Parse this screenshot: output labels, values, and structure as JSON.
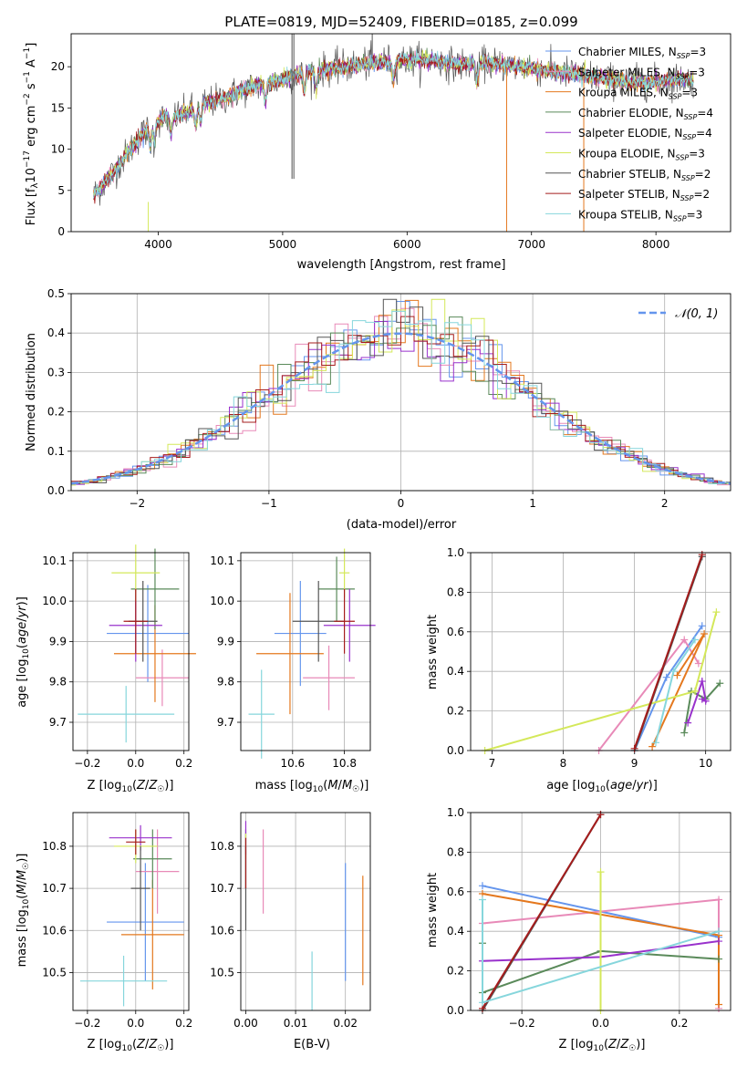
{
  "colors": {
    "chabrier_miles": "#6495ed",
    "salpeter_miles": "#e88ab8",
    "kroupa_miles": "#e4781e",
    "chabrier_elodie": "#5a8a5a",
    "salpeter_elodie": "#9932cc",
    "kroupa_elodie": "#d4e85a",
    "chabrier_stelib": "#555555",
    "salpeter_stelib": "#a51c1c",
    "kroupa_stelib": "#86d6dc",
    "grid": "#b0b0b0"
  },
  "chart_data": [
    {
      "id": "spectrum",
      "type": "line",
      "title": "PLATE=0819, MJD=52409, FIBERID=0185, z=0.099",
      "xlabel": "wavelength [Angstrom, rest frame]",
      "ylabel": "Flux [fλ10⁻¹⁷ erg cm⁻² s⁻¹ A⁻¹]",
      "xlim": [
        3300,
        8600
      ],
      "ylim": [
        0,
        24
      ],
      "xticks": [
        4000,
        5000,
        6000,
        7000,
        8000
      ],
      "yticks": [
        0,
        5,
        10,
        15,
        20
      ],
      "grid": false,
      "legend_position": "right",
      "legend": [
        {
          "label": "Chabrier MILES, N",
          "sub": "SSP",
          "tail": "=3",
          "color_key": "chabrier_miles"
        },
        {
          "label": "Salpeter MILES, N",
          "sub": "SSP",
          "tail": "=3",
          "color_key": "salpeter_miles"
        },
        {
          "label": "Kroupa MILES, N",
          "sub": "SSP",
          "tail": "=3",
          "color_key": "kroupa_miles"
        },
        {
          "label": "Chabrier ELODIE, N",
          "sub": "SSP",
          "tail": "=4",
          "color_key": "chabrier_elodie"
        },
        {
          "label": "Salpeter ELODIE, N",
          "sub": "SSP",
          "tail": "=4",
          "color_key": "salpeter_elodie"
        },
        {
          "label": "Kroupa ELODIE, N",
          "sub": "SSP",
          "tail": "=3",
          "color_key": "kroupa_elodie"
        },
        {
          "label": "Chabrier STELIB, N",
          "sub": "SSP",
          "tail": "=2",
          "color_key": "chabrier_stelib"
        },
        {
          "label": "Salpeter STELIB, N",
          "sub": "SSP",
          "tail": "=2",
          "color_key": "salpeter_stelib"
        },
        {
          "label": "Kroupa STELIB, N",
          "sub": "SSP",
          "tail": "=3",
          "color_key": "kroupa_stelib"
        }
      ],
      "continuum": {
        "x": [
          3480,
          3550,
          3650,
          3750,
          3850,
          3950,
          4050,
          4150,
          4250,
          4350,
          4500,
          4650,
          4800,
          4950,
          5100,
          5250,
          5400,
          5600,
          5800,
          6000,
          6200,
          6400,
          6600,
          6800,
          7000,
          7200,
          7400,
          7600,
          7800,
          8000,
          8200,
          8300
        ],
        "y": [
          4.5,
          5.5,
          7.5,
          9.5,
          11.5,
          13.0,
          13.8,
          14.0,
          14.6,
          15.5,
          16.0,
          17.0,
          17.8,
          18.2,
          19.0,
          19.5,
          19.8,
          20.2,
          20.6,
          20.8,
          20.8,
          20.2,
          20.5,
          20.2,
          19.8,
          19.4,
          19.0,
          18.5,
          18.1,
          18.2,
          18.5,
          18.4
        ]
      },
      "spikes": [
        {
          "x": 3920,
          "y0": 0,
          "y1": 3.6,
          "color_key": "kroupa_elodie"
        },
        {
          "x": 5075,
          "y0": 6.4,
          "y1": 24,
          "color_key": "chabrier_stelib"
        },
        {
          "x": 5090,
          "y0": 24,
          "y1": 6.4,
          "color_key": "chabrier_stelib"
        },
        {
          "x": 5720,
          "y0": 24,
          "y1": 21.0,
          "color_key": "chabrier_stelib"
        },
        {
          "x": 6800,
          "y0": 0,
          "y1": 20.0,
          "color_key": "kroupa_miles"
        },
        {
          "x": 7420,
          "y0": 0,
          "y1": 20.0,
          "color_key": "kroupa_miles"
        }
      ]
    },
    {
      "id": "residuals",
      "type": "line",
      "xlabel": "(data-model)/error",
      "ylabel": "Normed distribution",
      "xlim": [
        -2.5,
        2.5
      ],
      "ylim": [
        0,
        0.5
      ],
      "xticks": [
        -2,
        -1,
        0,
        1,
        2
      ],
      "yticks": [
        0.0,
        0.1,
        0.2,
        0.3,
        0.4,
        0.5
      ],
      "grid": true,
      "legend": [
        {
          "label": "𝒩(0, 1)",
          "color_key": "chabrier_miles",
          "style": "dashed"
        }
      ],
      "bin_width": 0.1,
      "gaussian": {
        "mu": 0,
        "sigma": 1
      }
    },
    {
      "id": "age_vs_Z",
      "type": "errorbar",
      "xlabel": "Z [log₁₀(Z/Z⊙)]",
      "ylabel": "age  [log₁₀(age/yr)]",
      "xlim": [
        -0.26,
        0.22
      ],
      "ylim": [
        9.63,
        10.12
      ],
      "xticks": [
        -0.2,
        0.0,
        0.2
      ],
      "yticks": [
        9.7,
        9.8,
        9.9,
        10.0,
        10.1
      ],
      "grid": true,
      "points": [
        {
          "x": 0.05,
          "y": 9.92,
          "xerr": 0.17,
          "yerr": 0.12,
          "color_key": "chabrier_miles"
        },
        {
          "x": 0.11,
          "y": 9.81,
          "xerr": 0.11,
          "yerr": 0.07,
          "color_key": "salpeter_miles"
        },
        {
          "x": 0.08,
          "y": 9.87,
          "xerr": 0.17,
          "yerr": 0.12,
          "color_key": "kroupa_miles"
        },
        {
          "x": 0.08,
          "y": 10.03,
          "xerr": 0.1,
          "yerr": 0.1,
          "color_key": "chabrier_elodie"
        },
        {
          "x": 0.0,
          "y": 9.94,
          "xerr": 0.11,
          "yerr": 0.09,
          "color_key": "salpeter_elodie"
        },
        {
          "x": 0.0,
          "y": 10.07,
          "xerr": 0.1,
          "yerr": 0.07,
          "color_key": "kroupa_elodie"
        },
        {
          "x": 0.03,
          "y": 9.95,
          "xerr": 0.06,
          "yerr": 0.1,
          "color_key": "chabrier_stelib"
        },
        {
          "x": 0.0,
          "y": 9.95,
          "xerr": 0.05,
          "yerr": 0.08,
          "color_key": "salpeter_stelib"
        },
        {
          "x": -0.04,
          "y": 9.72,
          "xerr": 0.2,
          "yerr": 0.07,
          "color_key": "kroupa_stelib"
        }
      ]
    },
    {
      "id": "age_vs_mass",
      "type": "errorbar",
      "xlabel": "mass [log₁₀(M/M⊙)]",
      "ylabel": "",
      "xlim": [
        10.4,
        10.9
      ],
      "ylim": [
        9.63,
        10.12
      ],
      "xticks": [
        10.6,
        10.8
      ],
      "yticks": [
        9.7,
        9.8,
        9.9,
        10.0,
        10.1
      ],
      "grid": true,
      "points": [
        {
          "x": 10.63,
          "y": 9.92,
          "xerr": 0.1,
          "yerr": 0.13,
          "color_key": "chabrier_miles"
        },
        {
          "x": 10.74,
          "y": 9.81,
          "xerr": 0.1,
          "yerr": 0.08,
          "color_key": "salpeter_miles"
        },
        {
          "x": 10.59,
          "y": 9.87,
          "xerr": 0.13,
          "yerr": 0.15,
          "color_key": "kroupa_miles"
        },
        {
          "x": 10.77,
          "y": 10.03,
          "xerr": 0.07,
          "yerr": 0.08,
          "color_key": "chabrier_elodie"
        },
        {
          "x": 10.82,
          "y": 9.94,
          "xerr": 0.1,
          "yerr": 0.09,
          "color_key": "salpeter_elodie"
        },
        {
          "x": 10.8,
          "y": 10.07,
          "xerr": 0.02,
          "yerr": 0.06,
          "color_key": "kroupa_elodie"
        },
        {
          "x": 10.7,
          "y": 9.95,
          "xerr": 0.1,
          "yerr": 0.1,
          "color_key": "chabrier_stelib"
        },
        {
          "x": 10.8,
          "y": 9.95,
          "xerr": 0.04,
          "yerr": 0.08,
          "color_key": "salpeter_stelib"
        },
        {
          "x": 10.48,
          "y": 9.72,
          "xerr": 0.05,
          "yerr": 0.11,
          "color_key": "kroupa_stelib"
        }
      ]
    },
    {
      "id": "weight_vs_age",
      "type": "line",
      "xlabel": "age  [log₁₀(age/yr)]",
      "ylabel": "mass weight",
      "xlim": [
        6.7,
        10.35
      ],
      "ylim": [
        0,
        1
      ],
      "xticks": [
        7,
        8,
        9,
        10
      ],
      "yticks": [
        0.0,
        0.2,
        0.4,
        0.6,
        0.8,
        1.0
      ],
      "grid": true,
      "series": [
        {
          "color_key": "chabrier_miles",
          "x": [
            9.95,
            9.45,
            9.0
          ],
          "y": [
            0.63,
            0.37,
            0.0
          ]
        },
        {
          "color_key": "salpeter_miles",
          "x": [
            8.5,
            9.7,
            9.9
          ],
          "y": [
            0.0,
            0.56,
            0.44
          ]
        },
        {
          "color_key": "kroupa_miles",
          "x": [
            9.25,
            9.98,
            9.6
          ],
          "y": [
            0.02,
            0.59,
            0.38
          ]
        },
        {
          "color_key": "chabrier_elodie",
          "x": [
            9.7,
            9.8,
            10.0,
            10.2
          ],
          "y": [
            0.09,
            0.3,
            0.26,
            0.34
          ]
        },
        {
          "color_key": "salpeter_elodie",
          "x": [
            9.75,
            9.95,
            10.0,
            9.95
          ],
          "y": [
            0.14,
            0.35,
            0.25,
            0.26
          ]
        },
        {
          "color_key": "kroupa_elodie",
          "x": [
            6.9,
            9.85,
            10.15
          ],
          "y": [
            0.0,
            0.3,
            0.7
          ]
        },
        {
          "color_key": "chabrier_stelib",
          "x": [
            9.0,
            9.95
          ],
          "y": [
            0.0,
            0.98
          ]
        },
        {
          "color_key": "salpeter_stelib",
          "x": [
            9.0,
            9.95
          ],
          "y": [
            0.01,
            0.99
          ]
        },
        {
          "color_key": "kroupa_stelib",
          "x": [
            9.3,
            9.55,
            9.85
          ],
          "y": [
            0.04,
            0.4,
            0.56
          ]
        }
      ]
    },
    {
      "id": "mass_vs_Z",
      "type": "errorbar",
      "xlabel": "Z [log₁₀(Z/Z⊙)]",
      "ylabel": "mass [log₁₀(M/M⊙)]",
      "xlim": [
        -0.26,
        0.22
      ],
      "ylim": [
        10.41,
        10.88
      ],
      "xticks": [
        -0.2,
        0.0,
        0.2
      ],
      "yticks": [
        10.5,
        10.6,
        10.7,
        10.8
      ],
      "grid": true,
      "points": [
        {
          "x": 0.04,
          "y": 10.62,
          "xerr": 0.16,
          "yerr": 0.14,
          "color_key": "chabrier_miles"
        },
        {
          "x": 0.09,
          "y": 10.74,
          "xerr": 0.09,
          "yerr": 0.1,
          "color_key": "salpeter_miles"
        },
        {
          "x": 0.07,
          "y": 10.59,
          "xerr": 0.13,
          "yerr": 0.13,
          "color_key": "kroupa_miles"
        },
        {
          "x": 0.07,
          "y": 10.77,
          "xerr": 0.08,
          "yerr": 0.07,
          "color_key": "chabrier_elodie"
        },
        {
          "x": 0.02,
          "y": 10.82,
          "xerr": 0.13,
          "yerr": 0.03,
          "color_key": "salpeter_elodie"
        },
        {
          "x": 0.0,
          "y": 10.8,
          "xerr": 0.09,
          "yerr": 0.04,
          "color_key": "kroupa_elodie"
        },
        {
          "x": 0.02,
          "y": 10.7,
          "xerr": 0.04,
          "yerr": 0.1,
          "color_key": "chabrier_stelib"
        },
        {
          "x": 0.0,
          "y": 10.81,
          "xerr": 0.04,
          "yerr": 0.03,
          "color_key": "salpeter_stelib"
        },
        {
          "x": -0.05,
          "y": 10.48,
          "xerr": 0.18,
          "yerr": 0.06,
          "color_key": "kroupa_stelib"
        }
      ]
    },
    {
      "id": "mass_vs_ebv",
      "type": "errorbar",
      "xlabel": "E(B-V)",
      "ylabel": "",
      "xlim": [
        -0.001,
        0.025
      ],
      "ylim": [
        10.41,
        10.88
      ],
      "xticks": [
        0.0,
        0.01,
        0.02
      ],
      "xtick_labels": [
        "0.00",
        "0.01",
        "0.02"
      ],
      "yticks": [
        10.5,
        10.6,
        10.7,
        10.8
      ],
      "grid": true,
      "points": [
        {
          "x": 0.02,
          "y": 10.62,
          "xerr": 0,
          "yerr": 0.14,
          "color_key": "chabrier_miles"
        },
        {
          "x": 0.0035,
          "y": 10.74,
          "xerr": 0,
          "yerr": 0.1,
          "color_key": "salpeter_miles"
        },
        {
          "x": 0.0235,
          "y": 10.6,
          "xerr": 0,
          "yerr": 0.13,
          "color_key": "kroupa_miles"
        },
        {
          "x": 0.0,
          "y": 10.77,
          "xerr": 0,
          "yerr": 0.07,
          "color_key": "chabrier_elodie"
        },
        {
          "x": 0.0,
          "y": 10.82,
          "xerr": 0,
          "yerr": 0.04,
          "color_key": "salpeter_elodie"
        },
        {
          "x": 0.0,
          "y": 10.8,
          "xerr": 0,
          "yerr": 0.03,
          "color_key": "kroupa_elodie"
        },
        {
          "x": 0.0,
          "y": 10.7,
          "xerr": 0,
          "yerr": 0.1,
          "color_key": "chabrier_stelib"
        },
        {
          "x": 0.0,
          "y": 10.76,
          "xerr": 0,
          "yerr": 0.06,
          "color_key": "salpeter_stelib"
        },
        {
          "x": 0.0133,
          "y": 10.48,
          "xerr": 0,
          "yerr": 0.07,
          "color_key": "kroupa_stelib"
        }
      ]
    },
    {
      "id": "weight_vs_Z",
      "type": "line",
      "xlabel": "Z [log₁₀(Z/Z⊙)]",
      "ylabel": "mass weight",
      "xlim": [
        -0.33,
        0.33
      ],
      "ylim": [
        0,
        1
      ],
      "xticks": [
        -0.2,
        0.0,
        0.2
      ],
      "yticks": [
        0.0,
        0.2,
        0.4,
        0.6,
        0.8,
        1.0
      ],
      "grid": true,
      "series": [
        {
          "color_key": "chabrier_miles",
          "x": [
            -0.3,
            0.0,
            0.3
          ],
          "y": [
            0.63,
            0.5,
            0.37
          ]
        },
        {
          "color_key": "salpeter_miles",
          "x": [
            -0.3,
            0.3,
            0.3
          ],
          "y": [
            0.44,
            0.56,
            0.01
          ]
        },
        {
          "color_key": "kroupa_miles",
          "x": [
            -0.3,
            0.3,
            0.3
          ],
          "y": [
            0.59,
            0.38,
            0.03
          ]
        },
        {
          "color_key": "chabrier_elodie",
          "x": [
            -0.3,
            -0.3,
            0.0,
            0.3
          ],
          "y": [
            0.34,
            0.09,
            0.3,
            0.26
          ]
        },
        {
          "color_key": "salpeter_elodie",
          "x": [
            -0.3,
            0.0,
            0.3
          ],
          "y": [
            0.25,
            0.27,
            0.35
          ]
        },
        {
          "color_key": "kroupa_elodie",
          "x": [
            0.0,
            0.0
          ],
          "y": [
            0.0,
            0.7
          ]
        },
        {
          "color_key": "chabrier_stelib",
          "x": [
            -0.3,
            0.0
          ],
          "y": [
            0.0,
            0.99
          ]
        },
        {
          "color_key": "salpeter_stelib",
          "x": [
            -0.3,
            0.0
          ],
          "y": [
            0.01,
            0.99
          ]
        },
        {
          "color_key": "kroupa_stelib",
          "x": [
            -0.3,
            -0.3,
            0.3
          ],
          "y": [
            0.56,
            0.04,
            0.4
          ]
        }
      ]
    }
  ]
}
